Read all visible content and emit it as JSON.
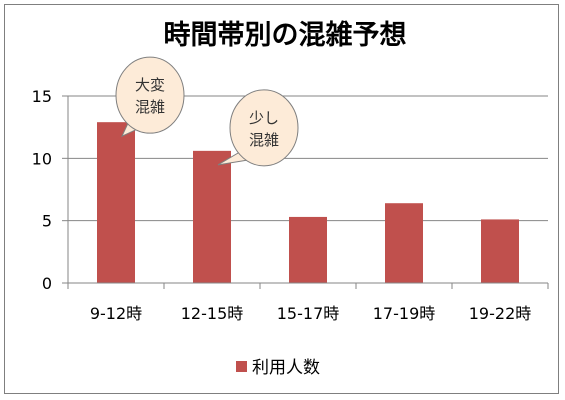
{
  "chart_data": {
    "type": "bar",
    "title": "時間帯別の混雑予想",
    "categories": [
      "9-12時",
      "12-15時",
      "15-17時",
      "17-19時",
      "19-22時"
    ],
    "series": [
      {
        "name": "利用人数",
        "values": [
          12.9,
          10.6,
          5.3,
          6.4,
          5.1
        ],
        "color": "#c0504d"
      }
    ],
    "ylim": [
      0,
      15
    ],
    "yticks": [
      0,
      5,
      10,
      15
    ],
    "grid": true,
    "legend_position": "bottom",
    "annotations": [
      {
        "category_index": 0,
        "lines": [
          "大変",
          "混雑"
        ]
      },
      {
        "category_index": 1,
        "lines": [
          "少し",
          "混雑"
        ]
      }
    ],
    "colors": {
      "grid": "#868686",
      "axis": "#868686",
      "bubble_fill": "#fdebd8",
      "bubble_stroke": "#7f7f7f"
    }
  }
}
